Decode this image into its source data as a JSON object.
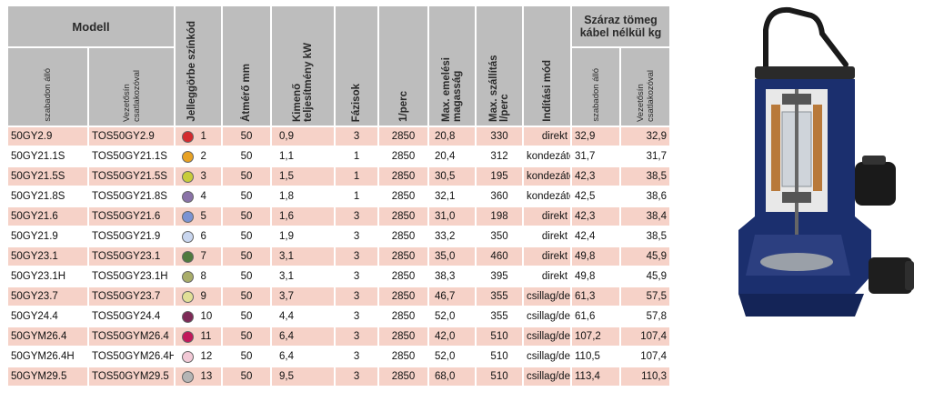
{
  "header": {
    "model": "Modell",
    "standalone": "szabadon álló",
    "rail": "Vezetősín csatlakozóval",
    "curve_code": "Jelleggörbe színkód",
    "diameter": "Átmérő mm",
    "power": "Kimenő teljesítmény kW",
    "phases": "Fázisok",
    "rpm": "1/perc",
    "max_head": "Max. emelési magasság",
    "max_flow": "Max. szállítás l/perc",
    "start_mode": "Indítási mód",
    "dry_weight": "Száraz tömeg kábel nélkül kg",
    "weight_standalone": "szabadon álló",
    "weight_rail": "Vezetősín csatlakozóval"
  },
  "rows": [
    {
      "model": "50GY2.9",
      "tos": "TOS50GY2.9",
      "color": "#d42a2e",
      "code": "1",
      "diam": "50",
      "kw": "0,9",
      "phase": "3",
      "rpm": "2850",
      "head": "20,8",
      "flow": "330",
      "start": "direkt",
      "w1": "32,9",
      "w2": "32,9"
    },
    {
      "model": "50GY21.1S",
      "tos": "TOS50GY21.1S",
      "color": "#e8a224",
      "code": "2",
      "diam": "50",
      "kw": "1,1",
      "phase": "1",
      "rpm": "2850",
      "head": "20,4",
      "flow": "312",
      "start": "kondezátor",
      "w1": "31,7",
      "w2": "31,7"
    },
    {
      "model": "50GY21.5S",
      "tos": "TOS50GY21.5S",
      "color": "#c8cc3a",
      "code": "3",
      "diam": "50",
      "kw": "1,5",
      "phase": "1",
      "rpm": "2850",
      "head": "30,5",
      "flow": "195",
      "start": "kondezátor",
      "w1": "42,3",
      "w2": "38,5"
    },
    {
      "model": "50GY21.8S",
      "tos": "TOS50GY21.8S",
      "color": "#8a73a8",
      "code": "4",
      "diam": "50",
      "kw": "1,8",
      "phase": "1",
      "rpm": "2850",
      "head": "32,1",
      "flow": "360",
      "start": "kondezátor",
      "w1": "42,5",
      "w2": "38,6"
    },
    {
      "model": "50GY21.6",
      "tos": "TOS50GY21.6",
      "color": "#7b93d3",
      "code": "5",
      "diam": "50",
      "kw": "1,6",
      "phase": "3",
      "rpm": "2850",
      "head": "31,0",
      "flow": "198",
      "start": "direkt",
      "w1": "42,3",
      "w2": "38,4"
    },
    {
      "model": "50GY21.9",
      "tos": "TOS50GY21.9",
      "color": "#c9d6ef",
      "code": "6",
      "diam": "50",
      "kw": "1,9",
      "phase": "3",
      "rpm": "2850",
      "head": "33,2",
      "flow": "350",
      "start": "direkt",
      "w1": "42,4",
      "w2": "38,5"
    },
    {
      "model": "50GY23.1",
      "tos": "TOS50GY23.1",
      "color": "#4f7a3e",
      "code": "7",
      "diam": "50",
      "kw": "3,1",
      "phase": "3",
      "rpm": "2850",
      "head": "35,0",
      "flow": "460",
      "start": "direkt",
      "w1": "49,8",
      "w2": "45,9"
    },
    {
      "model": "50GY23.1H",
      "tos": "TOS50GY23.1H",
      "color": "#a9ad6a",
      "code": "8",
      "diam": "50",
      "kw": "3,1",
      "phase": "3",
      "rpm": "2850",
      "head": "38,3",
      "flow": "395",
      "start": "direkt",
      "w1": "49,8",
      "w2": "45,9"
    },
    {
      "model": "50GY23.7",
      "tos": "TOS50GY23.7",
      "color": "#e1df96",
      "code": "9",
      "diam": "50",
      "kw": "3,7",
      "phase": "3",
      "rpm": "2850",
      "head": "46,7",
      "flow": "355",
      "start": "csillag/delta",
      "w1": "61,3",
      "w2": "57,5"
    },
    {
      "model": "50GY24.4",
      "tos": "TOS50GY24.4",
      "color": "#7e2a57",
      "code": "10",
      "diam": "50",
      "kw": "4,4",
      "phase": "3",
      "rpm": "2850",
      "head": "52,0",
      "flow": "355",
      "start": "csillag/delta",
      "w1": "61,6",
      "w2": "57,8"
    },
    {
      "model": "50GYM26.4",
      "tos": "TOS50GYM26.4",
      "color": "#c2185b",
      "code": "11",
      "diam": "50",
      "kw": "6,4",
      "phase": "3",
      "rpm": "2850",
      "head": "42,0",
      "flow": "510",
      "start": "csillag/delta",
      "w1": "107,2",
      "w2": "107,4"
    },
    {
      "model": "50GYM26.4H",
      "tos": "TOS50GYM26.4H",
      "color": "#f2c9d6",
      "code": "12",
      "diam": "50",
      "kw": "6,4",
      "phase": "3",
      "rpm": "2850",
      "head": "52,0",
      "flow": "510",
      "start": "csillag/delta",
      "w1": "110,5",
      "w2": "107,4"
    },
    {
      "model": "50GYM29.5",
      "tos": "TOS50GYM29.5",
      "color": "#b5b5b5",
      "code": "13",
      "diam": "50",
      "kw": "9,5",
      "phase": "3",
      "rpm": "2850",
      "head": "68,0",
      "flow": "510",
      "start": "csillag/delta",
      "w1": "113,4",
      "w2": "110,3"
    }
  ],
  "colors": {
    "header_bg": "#bdbdbd",
    "row_alt": "#f6d2c8",
    "pump_body": "#1f3f8f"
  },
  "image": {
    "icon": "submersible-pump-cutaway-icon"
  }
}
